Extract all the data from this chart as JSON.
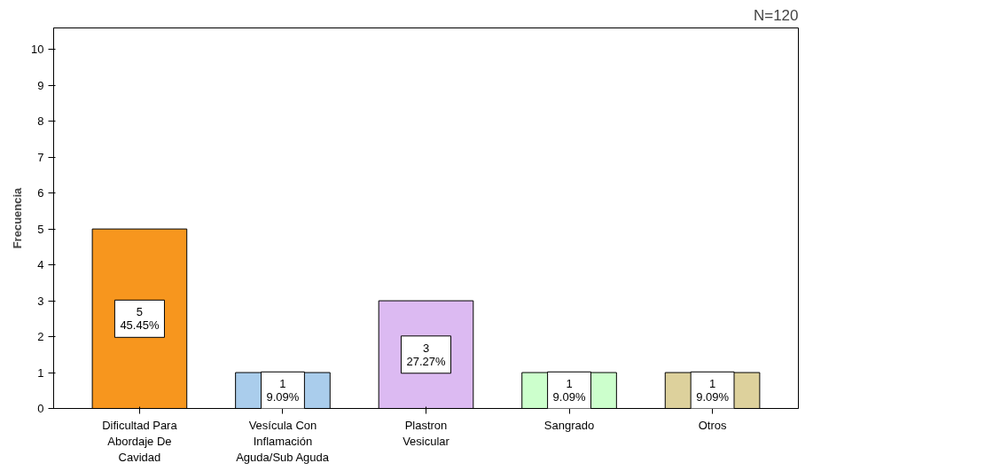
{
  "chart_data": {
    "type": "bar",
    "ylabel": "Frecuencia",
    "categories": [
      "Dificultad Para Abordaje De Cavidad",
      "Vesícula Con Inflamación Aguda/Sub Aguda",
      "Plastron Vesicular",
      "Sangrado",
      "Otros"
    ],
    "values": [
      5,
      1,
      3,
      1,
      1
    ],
    "colors": [
      "#f7961e",
      "#aacdec",
      "#dcbaf2",
      "#ccffcc",
      "#ddd19c"
    ],
    "value_labels": [
      "5\n45.45%",
      "1\n9.09%",
      "3\n27.27%",
      "1\n9.09%",
      "1\n9.09%"
    ],
    "ylim": [
      0,
      10.6
    ],
    "yticks": [
      0,
      1,
      2,
      3,
      4,
      5,
      6,
      7,
      8,
      9,
      10
    ],
    "annotations": [
      "N=120"
    ],
    "grid": false
  }
}
